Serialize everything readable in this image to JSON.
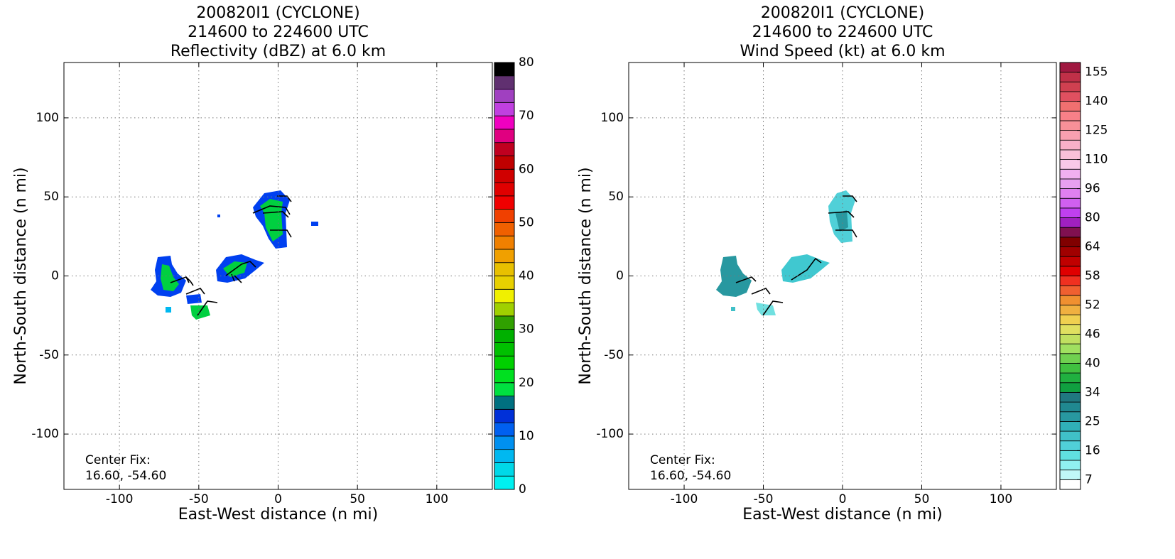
{
  "chart_data": [
    {
      "type": "heatmap",
      "title": [
        "200820I1 (CYCLONE)",
        "214600 to 224600 UTC",
        "Reflectivity (dBZ) at 6.0 km"
      ],
      "x_label": "East-West distance (n mi)",
      "y_label": "North-South distance (n mi)",
      "xlim": [
        -135,
        135
      ],
      "ylim": [
        -135,
        135
      ],
      "xticks": [
        -100,
        -50,
        0,
        50,
        100
      ],
      "yticks": [
        -100,
        -50,
        0,
        50,
        100
      ],
      "grid": true,
      "annotations": [
        "Center Fix:",
        "16.60, -54.60"
      ],
      "colorbar": {
        "bounds": [
          0,
          2.5,
          5,
          7.5,
          10,
          12.5,
          15,
          17.5,
          20,
          22.5,
          25,
          27.5,
          30,
          32.5,
          35,
          37.5,
          40,
          42.5,
          45,
          47.5,
          50,
          52.5,
          55,
          57.5,
          60,
          62.5,
          65,
          67.5,
          70,
          72.5,
          75,
          77.5,
          80
        ],
        "colors": [
          "#00f0f0",
          "#00d8e8",
          "#00b8f0",
          "#0090f0",
          "#0060f0",
          "#0030d8",
          "#007080",
          "#00e040",
          "#00e020",
          "#00d000",
          "#00c000",
          "#00b000",
          "#30a000",
          "#a0d000",
          "#f0f000",
          "#e8d000",
          "#e8c000",
          "#f0a000",
          "#f08000",
          "#f06000",
          "#f04000",
          "#f00000",
          "#e00000",
          "#d00000",
          "#c00000",
          "#c00020",
          "#e00080",
          "#f000c0",
          "#c040e0",
          "#a040c0",
          "#603070",
          "#000000"
        ],
        "ticks": [
          0,
          10,
          20,
          30,
          40,
          50,
          60,
          70,
          80
        ]
      }
    },
    {
      "type": "heatmap",
      "title": [
        "200820I1 (CYCLONE)",
        "214600 to 224600 UTC",
        "Wind Speed (kt) at 6.0 km"
      ],
      "x_label": "East-West distance (n mi)",
      "y_label": "North-South distance (n mi)",
      "xlim": [
        -135,
        135
      ],
      "ylim": [
        -135,
        135
      ],
      "xticks": [
        -100,
        -50,
        0,
        50,
        100
      ],
      "yticks": [
        -100,
        -50,
        0,
        50,
        100
      ],
      "grid": true,
      "annotations": [
        "Center Fix:",
        "16.60, -54.60"
      ],
      "colorbar": {
        "bounds": [
          4,
          7,
          10,
          13,
          16,
          19,
          22,
          25,
          28,
          31,
          34,
          36,
          38,
          40,
          42,
          44,
          46,
          48,
          50,
          52,
          54,
          56,
          58,
          60,
          62,
          64,
          69,
          75,
          80,
          85,
          91,
          96,
          101,
          105,
          110,
          115,
          120,
          125,
          130,
          135,
          140,
          145,
          150,
          155,
          160
        ],
        "colors": [
          "#ffffff",
          "#c0f8f8",
          "#90f0f0",
          "#60e0e0",
          "#50d0d8",
          "#40c0c8",
          "#30b0b8",
          "#2898a0",
          "#208890",
          "#207880",
          "#10a040",
          "#20b040",
          "#40c040",
          "#70d050",
          "#a0e060",
          "#c0e060",
          "#e0e060",
          "#f0d050",
          "#f0b040",
          "#f09030",
          "#f06030",
          "#f03020",
          "#e00000",
          "#c00000",
          "#a00000",
          "#800000",
          "#801050",
          "#a020c0",
          "#c040f0",
          "#d060f0",
          "#e080f0",
          "#e8a0f0",
          "#f0b0f0",
          "#f8c8e8",
          "#f8c0d8",
          "#f8b0c8",
          "#f8a0b0",
          "#f89098",
          "#f88088",
          "#f07070",
          "#e05060",
          "#d04050",
          "#c03048",
          "#a01840"
        ],
        "ticks": [
          7,
          16,
          25,
          34,
          40,
          46,
          52,
          58,
          64,
          80,
          96,
          110,
          125,
          140,
          155
        ]
      }
    }
  ]
}
